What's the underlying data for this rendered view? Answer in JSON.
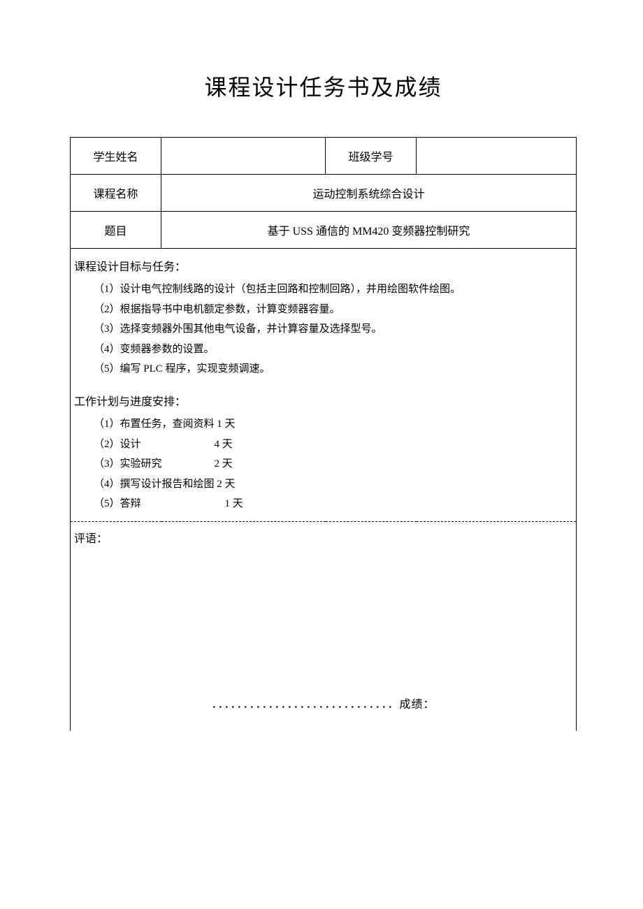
{
  "page_title": "课程设计任务书及成绩",
  "row1": {
    "name_label": "学生姓名",
    "name_value": "",
    "class_label": "班级学号",
    "class_value": ""
  },
  "row2": {
    "course_label": "课程名称",
    "course_value": "运动控制系统综合设计"
  },
  "row3": {
    "topic_label": "题目",
    "topic_value": "基于 USS 通信的 MM420 变频器控制研究"
  },
  "tasks": {
    "header": "课程设计目标与任务：",
    "item1": "（1）设计电气控制线路的设计（包括主回路和控制回路），并用绘图软件绘图。",
    "item2": "（2）根据指导书中电机额定参数，计算变频器容量。",
    "item3": "（3）选择变频器外围其他电气设备，并计算容量及选择型号。",
    "item4": "（4）变频器参数的设置。",
    "item5": "（5）编写 PLC 程序，实现变频调速。"
  },
  "schedule": {
    "header": "工作计划与进度安排：",
    "item1": "（1）布置任务，查阅资料 1 天",
    "item2": "（2）设计　　　　　　　4 天",
    "item3": "（3）实验研究　　　　　2 天",
    "item4": "（4）撰写设计报告和绘图 2 天",
    "item5": "（5）答辩　　　　　　　　1 天"
  },
  "comment": {
    "label": "评语：",
    "score_line": "．．．．．．．．．．．．．．．．．．．．．．．．．．．．．成绩："
  }
}
